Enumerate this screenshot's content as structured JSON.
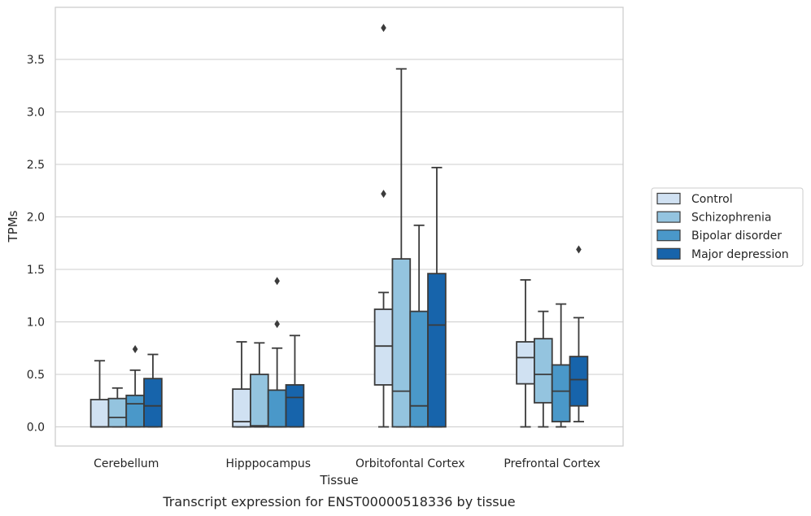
{
  "caption": "Transcript expression for ENST00000518336 by tissue",
  "chart_data": {
    "type": "box",
    "title": "",
    "xlabel": "Tissue",
    "ylabel": "TPMs",
    "ylim": [
      -0.18,
      3.99
    ],
    "yticks": [
      0.0,
      0.5,
      1.0,
      1.5,
      2.0,
      2.5,
      3.0,
      3.5
    ],
    "ytick_labels": [
      "0.0",
      "0.5",
      "1.0",
      "1.5",
      "2.0",
      "2.5",
      "3.0",
      "3.5"
    ],
    "grid": "y",
    "legend_position": "right",
    "categories": [
      "Cerebellum",
      "Hipppocampus",
      "Orbitofontal Cortex",
      "Prefrontal Cortex"
    ],
    "series": [
      {
        "name": "Control",
        "color": "#d0e1f2",
        "boxes": [
          {
            "min": 0.0,
            "q1": 0.0,
            "median": 0.0,
            "q3": 0.26,
            "max": 0.63,
            "outliers": []
          },
          {
            "min": 0.0,
            "q1": 0.0,
            "median": 0.05,
            "q3": 0.36,
            "max": 0.81,
            "outliers": []
          },
          {
            "min": 0.0,
            "q1": 0.4,
            "median": 0.77,
            "q3": 1.12,
            "max": 1.28,
            "outliers": [
              2.22,
              3.8
            ]
          },
          {
            "min": 0.0,
            "q1": 0.41,
            "median": 0.66,
            "q3": 0.81,
            "max": 1.4,
            "outliers": []
          }
        ]
      },
      {
        "name": "Schizophrenia",
        "color": "#94c4df",
        "boxes": [
          {
            "min": 0.0,
            "q1": 0.0,
            "median": 0.09,
            "q3": 0.27,
            "max": 0.37,
            "outliers": []
          },
          {
            "min": 0.0,
            "q1": 0.0,
            "median": 0.01,
            "q3": 0.5,
            "max": 0.8,
            "outliers": []
          },
          {
            "min": 0.0,
            "q1": 0.0,
            "median": 0.34,
            "q3": 1.6,
            "max": 3.41,
            "outliers": []
          },
          {
            "min": 0.0,
            "q1": 0.23,
            "median": 0.5,
            "q3": 0.84,
            "max": 1.1,
            "outliers": []
          }
        ]
      },
      {
        "name": "Bipolar disorder",
        "color": "#4a98c9",
        "boxes": [
          {
            "min": 0.0,
            "q1": 0.0,
            "median": 0.22,
            "q3": 0.3,
            "max": 0.54,
            "outliers": [
              0.74
            ]
          },
          {
            "min": 0.0,
            "q1": 0.0,
            "median": 0.0,
            "q3": 0.35,
            "max": 0.75,
            "outliers": [
              0.98,
              1.39
            ]
          },
          {
            "min": 0.0,
            "q1": 0.0,
            "median": 0.2,
            "q3": 1.1,
            "max": 1.92,
            "outliers": []
          },
          {
            "min": 0.0,
            "q1": 0.05,
            "median": 0.34,
            "q3": 0.59,
            "max": 1.17,
            "outliers": []
          }
        ]
      },
      {
        "name": "Major depression",
        "color": "#1764ab",
        "boxes": [
          {
            "min": 0.0,
            "q1": 0.0,
            "median": 0.2,
            "q3": 0.46,
            "max": 0.69,
            "outliers": []
          },
          {
            "min": 0.0,
            "q1": 0.0,
            "median": 0.28,
            "q3": 0.4,
            "max": 0.87,
            "outliers": []
          },
          {
            "min": 0.0,
            "q1": 0.0,
            "median": 0.97,
            "q3": 1.46,
            "max": 2.47,
            "outliers": []
          },
          {
            "min": 0.05,
            "q1": 0.2,
            "median": 0.45,
            "q3": 0.67,
            "max": 1.04,
            "outliers": [
              1.69
            ]
          }
        ]
      }
    ]
  }
}
